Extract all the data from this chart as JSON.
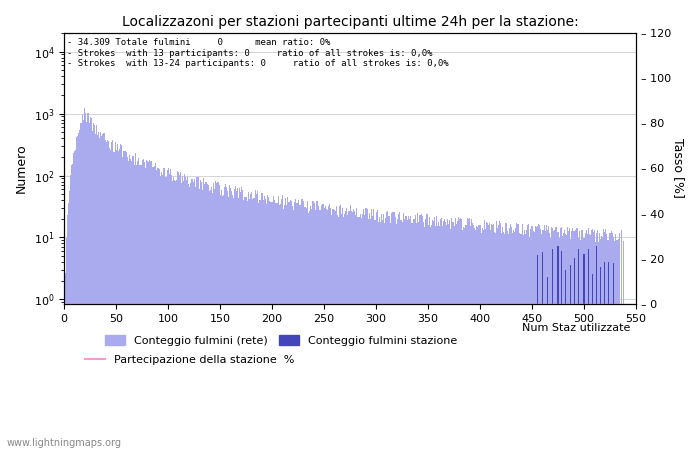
{
  "title": "Localizzazoni per stazioni partecipanti ultime 24h per la stazione:",
  "ylabel_left": "Numero",
  "ylabel_right": "Tasso [%]",
  "annotation_lines": [
    "34.309 Totale fulmini     0      mean ratio: 0%",
    "Strokes  with 13 participants: 0     ratio of all strokes is: 0,0%",
    "Strokes  with 13-24 participants: 0     ratio of all strokes is: 0,0%"
  ],
  "bar_color_light": "#aaaaee",
  "bar_color_dark": "#4444bb",
  "line_color": "#ff99cc",
  "watermark": "www.lightningmaps.org",
  "xmin": 0,
  "xmax": 550,
  "ylim_right": [
    0,
    120
  ],
  "xticks": [
    0,
    50,
    100,
    150,
    200,
    250,
    300,
    350,
    400,
    450,
    500,
    550
  ],
  "yticks_right": [
    0,
    20,
    40,
    60,
    80,
    100,
    120
  ],
  "legend1_label": "Conteggio fulmini (rete)",
  "legend2_label": "Conteggio fulmini stazione",
  "legend3_label": "Partecipazione della stazione  %",
  "legend_xlabel": "Num Staz utilizzate"
}
